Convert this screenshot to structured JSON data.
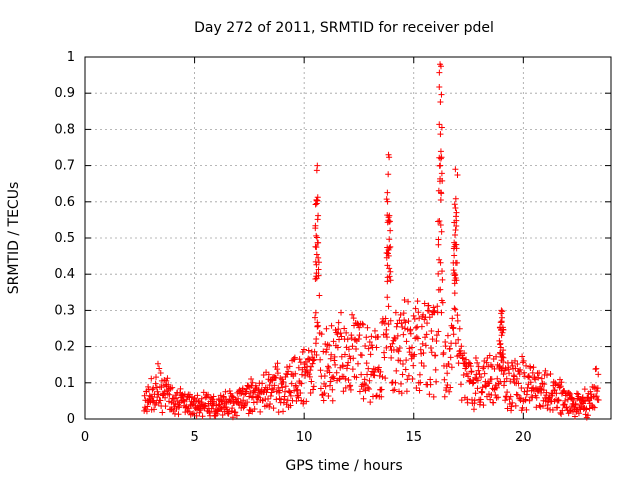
{
  "chart_data": {
    "type": "scatter",
    "title": "Day 272 of 2011, SRMTID for receiver pdel",
    "xlabel": "GPS time / hours",
    "ylabel": "SRMTID / TECUs",
    "xlim": [
      0,
      24
    ],
    "ylim": [
      0,
      1
    ],
    "xticks": [
      0,
      5,
      10,
      15,
      20
    ],
    "yticks": [
      0,
      0.1,
      0.2,
      0.3,
      0.4,
      0.5,
      0.6,
      0.7,
      0.8,
      0.9,
      1
    ],
    "grid": true,
    "series": [
      {
        "name": "SRMTID",
        "marker": "+",
        "color": "#ff0000",
        "x_start": 2.7,
        "x_end": 23.45,
        "baseline_profile": [
          [
            2.7,
            0.03
          ],
          [
            3.0,
            0.08
          ],
          [
            3.3,
            0.1
          ],
          [
            4.0,
            0.05
          ],
          [
            5.0,
            0.04
          ],
          [
            6.0,
            0.035
          ],
          [
            7.0,
            0.05
          ],
          [
            8.0,
            0.07
          ],
          [
            9.0,
            0.09
          ],
          [
            10.0,
            0.11
          ],
          [
            11.0,
            0.15
          ],
          [
            12.0,
            0.18
          ],
          [
            13.0,
            0.15
          ],
          [
            14.0,
            0.19
          ],
          [
            15.0,
            0.2
          ],
          [
            16.0,
            0.18
          ],
          [
            17.0,
            0.17
          ],
          [
            17.5,
            0.1
          ],
          [
            18.0,
            0.1
          ],
          [
            19.0,
            0.1
          ],
          [
            20.0,
            0.1
          ],
          [
            21.0,
            0.08
          ],
          [
            22.0,
            0.05
          ],
          [
            23.0,
            0.04
          ],
          [
            23.45,
            0.1
          ]
        ],
        "peaks": [
          {
            "x": 10.6,
            "ymax": 0.7
          },
          {
            "x": 13.85,
            "ymax": 0.73
          },
          {
            "x": 16.2,
            "ymax": 0.98
          },
          {
            "x": 16.9,
            "ymax": 0.69
          },
          {
            "x": 19.0,
            "ymax": 0.3
          }
        ]
      }
    ]
  }
}
